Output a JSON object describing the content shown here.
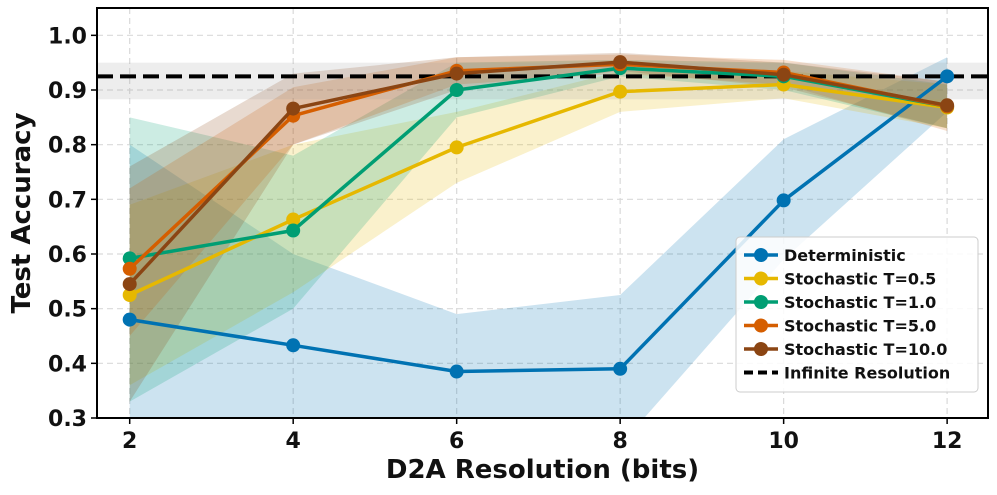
{
  "chart_data": {
    "type": "line",
    "title": "",
    "xlabel": "D2A Resolution (bits)",
    "ylabel": "Test Accuracy",
    "x": [
      2,
      4,
      6,
      8,
      10,
      12
    ],
    "xlim": [
      1.6,
      12.5
    ],
    "ylim": [
      0.3,
      1.05
    ],
    "xticks": [
      "2",
      "4",
      "6",
      "8",
      "10",
      "12"
    ],
    "yticks": [
      "0.3",
      "0.4",
      "0.5",
      "0.6",
      "0.7",
      "0.8",
      "0.9",
      "1.0"
    ],
    "grid": true,
    "legend_position": "lower-right",
    "series": [
      {
        "name": "Deterministic",
        "color": "#0072B2",
        "values": [
          0.48,
          0.433,
          0.385,
          0.39,
          0.698,
          0.925
        ],
        "lower": [
          0.15,
          0.26,
          0.2,
          0.25,
          0.59,
          0.86
        ],
        "upper": [
          0.8,
          0.6,
          0.49,
          0.525,
          0.81,
          0.96
        ]
      },
      {
        "name": "Stochastic T=0.5",
        "color": "#E6B800",
        "values": [
          0.525,
          0.663,
          0.795,
          0.897,
          0.91,
          0.868
        ],
        "lower": [
          0.36,
          0.53,
          0.73,
          0.86,
          0.885,
          0.83
        ],
        "upper": [
          0.69,
          0.8,
          0.86,
          0.934,
          0.935,
          0.91
        ]
      },
      {
        "name": "Stochastic T=1.0",
        "color": "#009E73",
        "values": [
          0.592,
          0.643,
          0.9,
          0.94,
          0.925,
          0.87
        ],
        "lower": [
          0.33,
          0.5,
          0.85,
          0.925,
          0.9,
          0.83
        ],
        "upper": [
          0.85,
          0.78,
          0.95,
          0.955,
          0.95,
          0.91
        ]
      },
      {
        "name": "Stochastic T=5.0",
        "color": "#D55E00",
        "values": [
          0.573,
          0.853,
          0.935,
          0.947,
          0.932,
          0.87
        ],
        "lower": [
          0.45,
          0.8,
          0.91,
          0.93,
          0.91,
          0.825
        ],
        "upper": [
          0.72,
          0.905,
          0.96,
          0.965,
          0.955,
          0.915
        ]
      },
      {
        "name": "Stochastic T=10.0",
        "color": "#8B4513",
        "values": [
          0.545,
          0.866,
          0.93,
          0.951,
          0.928,
          0.872
        ],
        "lower": [
          0.33,
          0.8,
          0.9,
          0.935,
          0.905,
          0.83
        ],
        "upper": [
          0.76,
          0.93,
          0.96,
          0.968,
          0.95,
          0.915
        ]
      }
    ],
    "reference_line": {
      "name": "Infinite Resolution",
      "color": "#000000",
      "value": 0.925,
      "lower": 0.883,
      "upper": 0.95
    }
  }
}
